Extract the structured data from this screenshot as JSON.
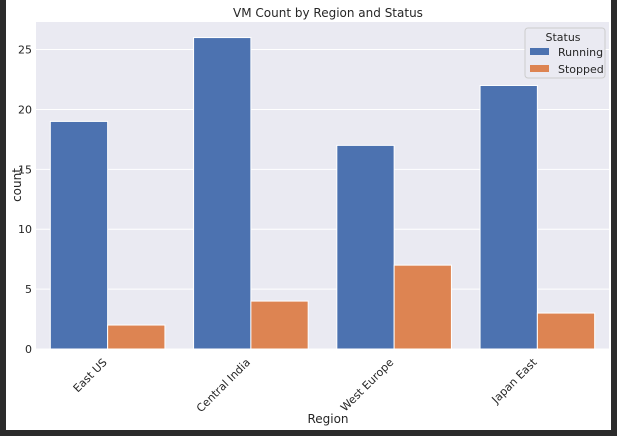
{
  "chart_data": {
    "type": "bar",
    "title": "VM Count by Region and Status",
    "xlabel": "Region",
    "ylabel": "count",
    "categories": [
      "East US",
      "Central India",
      "West Europe",
      "Japan East"
    ],
    "series": [
      {
        "name": "Running",
        "values": [
          19,
          26,
          17,
          22
        ],
        "color": "#4c72b0"
      },
      {
        "name": "Stopped",
        "values": [
          2,
          4,
          7,
          3
        ],
        "color": "#dd8452"
      }
    ],
    "ylim": [
      0,
      27.3
    ],
    "yticks": [
      0,
      5,
      10,
      15,
      20,
      25
    ],
    "grid": true,
    "legend": {
      "title": "Status",
      "placement": "top-right"
    },
    "background_color": "#eaeaf2"
  }
}
